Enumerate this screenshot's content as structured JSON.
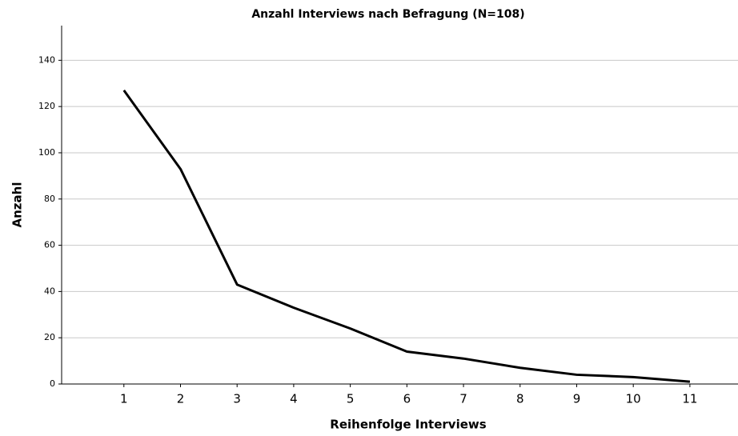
{
  "chart_data": {
    "type": "line",
    "title": "Anzahl Interviews nach Befragung (N=108)",
    "xlabel": "Reihenfolge Interviews",
    "ylabel": "Anzahl",
    "x": [
      1,
      2,
      3,
      4,
      5,
      6,
      7,
      8,
      9,
      10,
      11
    ],
    "series": [
      {
        "name": "Anzahl",
        "color": "#000000",
        "values": [
          127,
          93,
          43,
          33,
          24,
          14,
          11,
          7,
          4,
          3,
          1
        ]
      }
    ],
    "xlim": [
      -0.1,
      11.85
    ],
    "xticks": [
      1,
      2,
      3,
      4,
      5,
      6,
      7,
      8,
      9,
      10,
      11
    ],
    "ylim": [
      0,
      155
    ],
    "yticks": [
      0,
      20,
      40,
      60,
      80,
      100,
      120,
      140
    ],
    "grid": true
  }
}
